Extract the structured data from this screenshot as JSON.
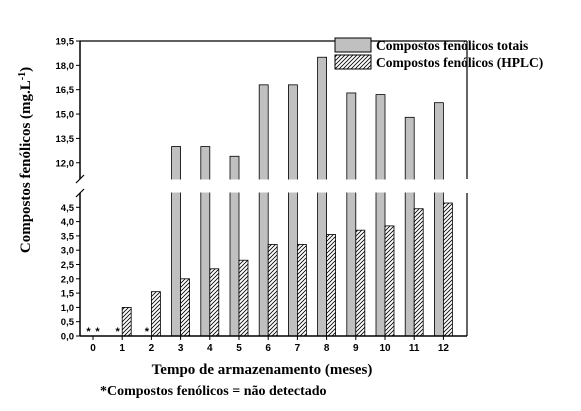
{
  "chart_data": {
    "type": "bar",
    "categories": [
      "0",
      "1",
      "2",
      "3",
      "4",
      "5",
      "6",
      "7",
      "8",
      "9",
      "10",
      "11",
      "12"
    ],
    "series": [
      {
        "name": "Compostos fenólicos totais",
        "values": [
          null,
          null,
          null,
          13.0,
          13.0,
          12.4,
          16.8,
          16.8,
          18.5,
          16.3,
          16.2,
          14.8,
          15.7
        ],
        "color": "#c0c0c0"
      },
      {
        "name": "Compostos fenólicos (HPLC)",
        "values": [
          null,
          1.0,
          1.55,
          2.0,
          2.35,
          2.65,
          3.2,
          3.2,
          3.55,
          3.7,
          3.85,
          4.45,
          4.65
        ],
        "pattern": "diagonal-hatch"
      }
    ],
    "not_detected_marks": [
      {
        "category": "0",
        "series": "Compostos fenólicos totais"
      },
      {
        "category": "0",
        "series": "Compostos fenólicos (HPLC)"
      },
      {
        "category": "1",
        "series": "Compostos fenólicos totais"
      },
      {
        "category": "2",
        "series": "Compostos fenólicos totais"
      }
    ],
    "star_symbol": "*",
    "xlabel": "Tempo de armazenamento (meses)",
    "ylabel_main": "Compostos fenólicos (mg.L",
    "ylabel_sup": "-1",
    "ylabel_close": ")",
    "ylim_lower": [
      0,
      5.0
    ],
    "ylim_upper": [
      11.0,
      19.5
    ],
    "yticks_lower": [
      "0,0",
      "0,5",
      "1,0",
      "1,5",
      "2,0",
      "2,5",
      "3,0",
      "3,5",
      "4,0",
      "4,5"
    ],
    "yticks_upper": [
      "12,0",
      "13,5",
      "15,0",
      "16,5",
      "18,0",
      "19,5"
    ],
    "axis_break": true,
    "legend_position": "top-right",
    "footnote": "*Compostos fenólicos = não detectado"
  }
}
